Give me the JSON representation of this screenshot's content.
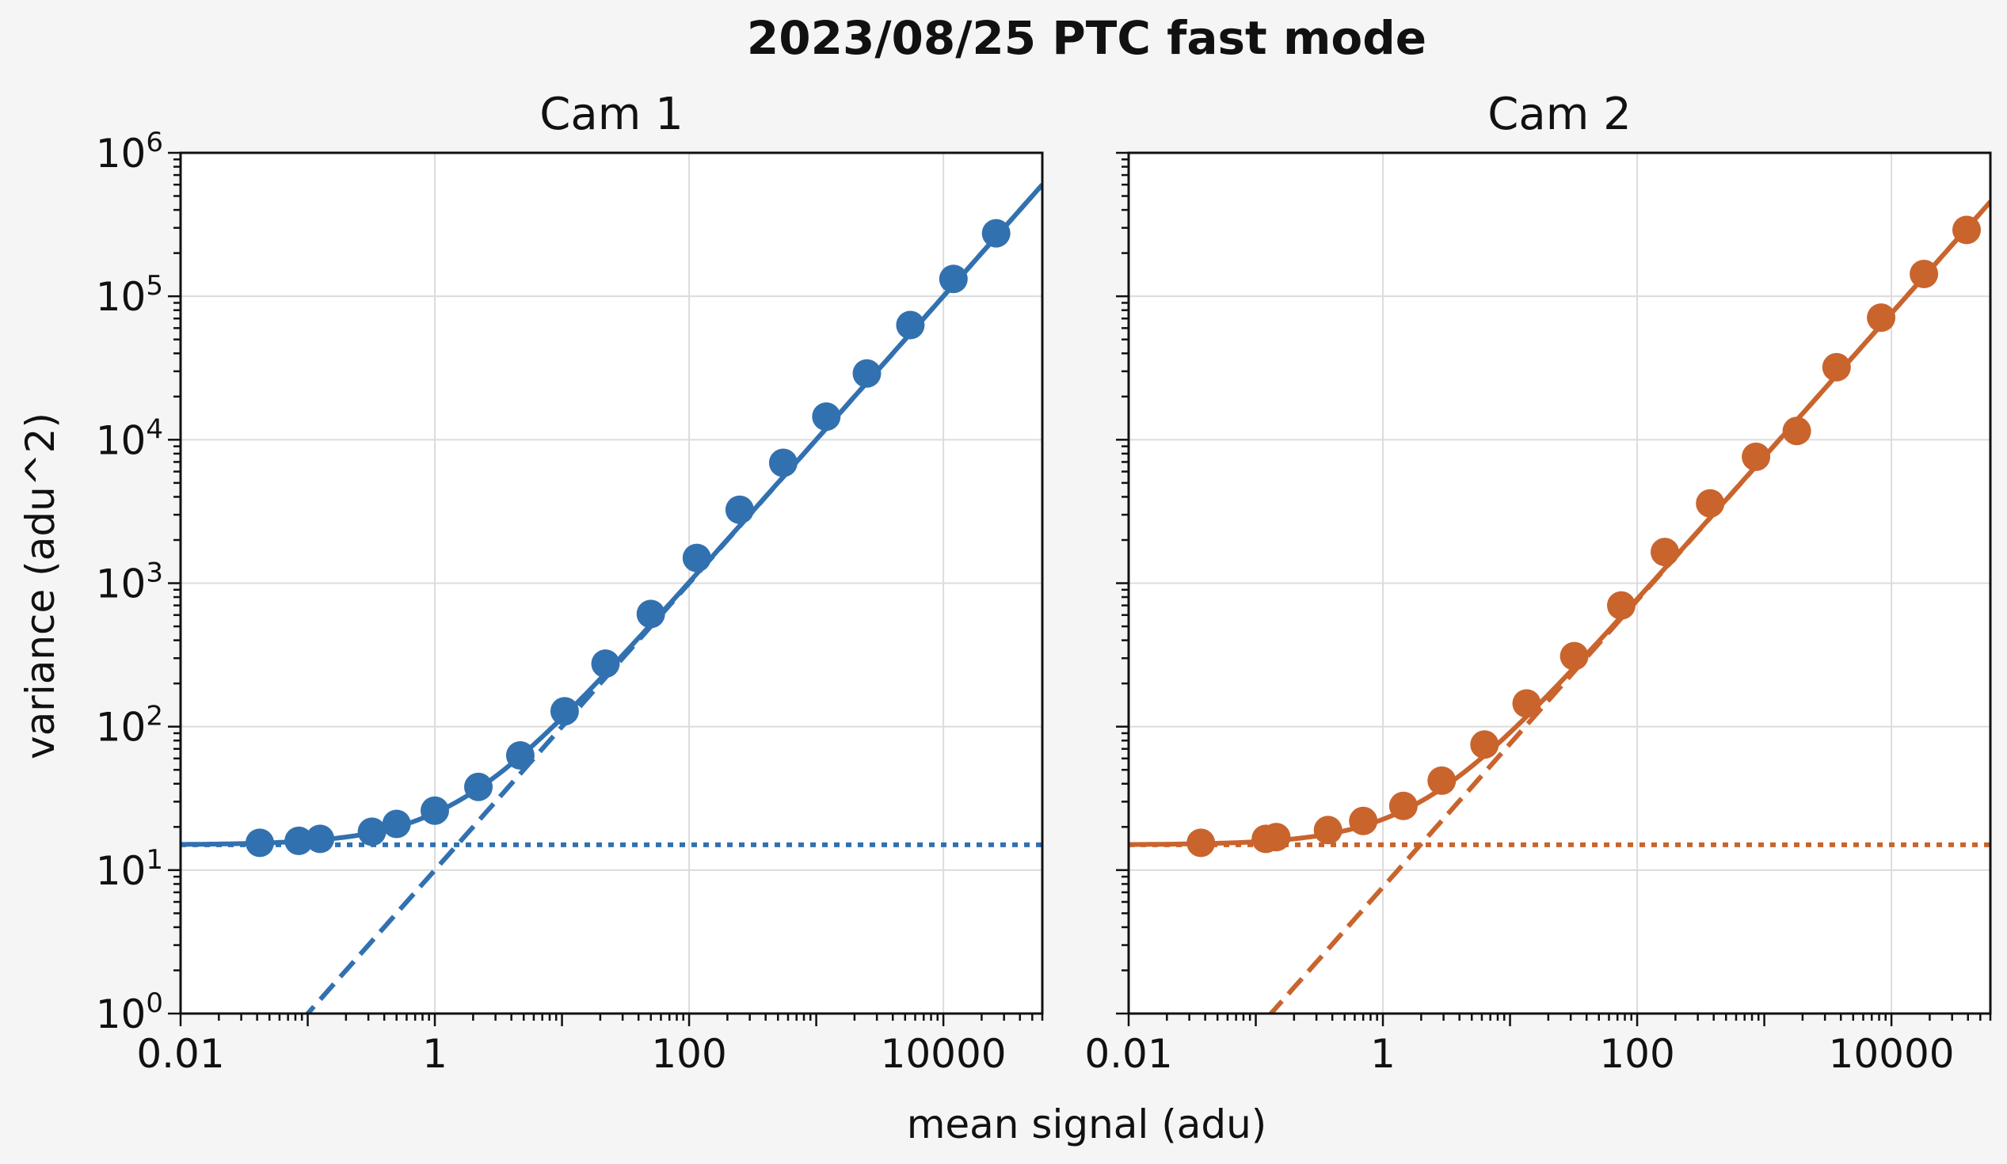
{
  "figure": {
    "title": "2023/08/25 PTC fast mode",
    "xlabel": "mean signal (adu)",
    "ylabel": "variance (adu^2)"
  },
  "chart_data": [
    {
      "type": "scatter",
      "title": "Cam 1",
      "xscale": "log",
      "yscale": "log",
      "xlim": [
        0.01,
        60000
      ],
      "ylim": [
        1,
        1000000
      ],
      "xticks": [
        "0.01",
        "1",
        "100",
        "10000"
      ],
      "yticks": [
        "10^0",
        "10^1",
        "10^2",
        "10^3",
        "10^4",
        "10^5",
        "10^6"
      ],
      "grid": true,
      "color": "#3271b0",
      "points": {
        "x": [
          0.042,
          0.085,
          0.125,
          0.32,
          0.5,
          1.0,
          2.2,
          4.7,
          10.5,
          22,
          50,
          115,
          250,
          550,
          1200,
          2500,
          5500,
          12000,
          26000
        ],
        "y": [
          15.5,
          16,
          16.5,
          18.5,
          21,
          26,
          38,
          63,
          128,
          275,
          610,
          1500,
          3250,
          6900,
          14500,
          29000,
          63000,
          132000,
          275000
        ]
      },
      "fit": {
        "read_noise_variance": 15,
        "shot_slope": 10,
        "lines": [
          "solid: total",
          "dashed: shot noise",
          "dotted: read noise"
        ]
      }
    },
    {
      "type": "scatter",
      "title": "Cam 2",
      "xscale": "log",
      "yscale": "log",
      "xlim": [
        0.01,
        60000
      ],
      "ylim": [
        1,
        1000000
      ],
      "xticks": [
        "0.01",
        "1",
        "100",
        "10000"
      ],
      "yticks": [
        "10^0",
        "10^1",
        "10^2",
        "10^3",
        "10^4",
        "10^5",
        "10^6"
      ],
      "grid": true,
      "color": "#c9642d",
      "points": {
        "x": [
          0.037,
          0.12,
          0.145,
          0.37,
          0.7,
          1.45,
          2.9,
          6.3,
          13.5,
          32,
          75,
          165,
          375,
          860,
          1800,
          3700,
          8300,
          18000,
          39000
        ],
        "y": [
          15.5,
          16.5,
          17,
          19,
          22,
          28,
          42,
          75,
          145,
          310,
          700,
          1650,
          3600,
          7600,
          11500,
          32000,
          71000,
          143000,
          290000
        ]
      },
      "fit": {
        "read_noise_variance": 15,
        "shot_slope": 7.6,
        "lines": [
          "solid: total",
          "dashed: shot noise",
          "dotted: read noise"
        ]
      }
    }
  ]
}
